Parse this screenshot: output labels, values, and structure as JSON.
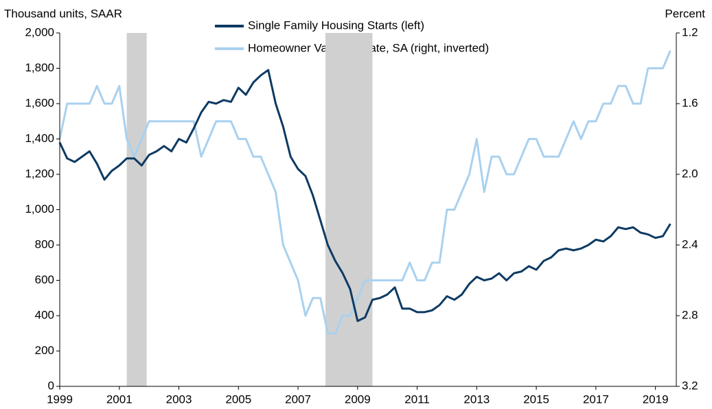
{
  "chart_data": {
    "type": "line",
    "y_label": "Thousand units, SAAR",
    "y2_label": "Percent",
    "x": [
      1999,
      1999.25,
      1999.5,
      1999.75,
      2000,
      2000.25,
      2000.5,
      2000.75,
      2001,
      2001.25,
      2001.5,
      2001.75,
      2002,
      2002.25,
      2002.5,
      2002.75,
      2003,
      2003.25,
      2003.5,
      2003.75,
      2004,
      2004.25,
      2004.5,
      2004.75,
      2005,
      2005.25,
      2005.5,
      2005.75,
      2006,
      2006.25,
      2006.5,
      2006.75,
      2007,
      2007.25,
      2007.5,
      2007.75,
      2008,
      2008.25,
      2008.5,
      2008.75,
      2009,
      2009.25,
      2009.5,
      2009.75,
      2010,
      2010.25,
      2010.5,
      2010.75,
      2011,
      2011.25,
      2011.5,
      2011.75,
      2012,
      2012.25,
      2012.5,
      2012.75,
      2013,
      2013.25,
      2013.5,
      2013.75,
      2014,
      2014.25,
      2014.5,
      2014.75,
      2015,
      2015.25,
      2015.5,
      2015.75,
      2016,
      2016.25,
      2016.5,
      2016.75,
      2017,
      2017.25,
      2017.5,
      2017.75,
      2018,
      2018.25,
      2018.5,
      2018.75,
      2019,
      2019.25,
      2019.5
    ],
    "series": [
      {
        "name": "Single Family Housing Starts (left)",
        "color": "#0d3a63",
        "axis": "y",
        "values": [
          1380,
          1290,
          1270,
          1300,
          1330,
          1260,
          1170,
          1220,
          1250,
          1290,
          1290,
          1250,
          1310,
          1330,
          1360,
          1330,
          1400,
          1380,
          1460,
          1550,
          1610,
          1600,
          1620,
          1610,
          1690,
          1650,
          1720,
          1760,
          1790,
          1600,
          1470,
          1300,
          1230,
          1190,
          1080,
          940,
          800,
          710,
          640,
          550,
          370,
          390,
          490,
          500,
          520,
          560,
          440,
          440,
          420,
          420,
          430,
          460,
          510,
          490,
          520,
          580,
          620,
          600,
          610,
          640,
          600,
          640,
          650,
          680,
          660,
          710,
          730,
          770,
          780,
          770,
          780,
          800,
          830,
          820,
          850,
          900,
          890,
          900,
          870,
          860,
          840,
          850,
          920
        ]
      },
      {
        "name": "Homeowner Vacancy Rate, SA (right, inverted)",
        "color": "#a9d1ef",
        "axis": "y2",
        "values": [
          1.8,
          1.6,
          1.6,
          1.6,
          1.6,
          1.5,
          1.6,
          1.6,
          1.5,
          1.8,
          1.9,
          1.8,
          1.7,
          1.7,
          1.7,
          1.7,
          1.7,
          1.7,
          1.7,
          1.9,
          1.8,
          1.7,
          1.7,
          1.7,
          1.8,
          1.8,
          1.9,
          1.9,
          2.0,
          2.1,
          2.4,
          2.5,
          2.6,
          2.8,
          2.7,
          2.7,
          2.9,
          2.9,
          2.8,
          2.8,
          2.7,
          2.6,
          2.6,
          2.6,
          2.6,
          2.6,
          2.6,
          2.5,
          2.6,
          2.6,
          2.5,
          2.5,
          2.2,
          2.2,
          2.1,
          2.0,
          1.8,
          2.1,
          1.9,
          1.9,
          2.0,
          2.0,
          1.9,
          1.8,
          1.8,
          1.9,
          1.9,
          1.9,
          1.8,
          1.7,
          1.8,
          1.7,
          1.7,
          1.6,
          1.6,
          1.5,
          1.5,
          1.6,
          1.6,
          1.4,
          1.4,
          1.4,
          1.3
        ]
      }
    ],
    "recessions": [
      [
        2001.25,
        2001.92
      ],
      [
        2007.92,
        2009.5
      ]
    ],
    "recession_color": "#d0d0d0",
    "xlim": [
      1999,
      2019.7
    ],
    "xticks": [
      1999,
      2001,
      2003,
      2005,
      2007,
      2009,
      2011,
      2013,
      2015,
      2017,
      2019
    ],
    "ylim": [
      0,
      2000
    ],
    "yticks": [
      0,
      200,
      400,
      600,
      800,
      {
        "value": 1000,
        "label": "1,000"
      },
      {
        "value": 1200,
        "label": "1,200"
      },
      {
        "value": 1400,
        "label": "1,400"
      },
      {
        "value": 1600,
        "label": "1,600"
      },
      {
        "value": 1800,
        "label": "1,800"
      },
      {
        "value": 2000,
        "label": "2,000"
      }
    ],
    "y2lim": [
      3.2,
      1.2
    ],
    "y2ticks": [
      1.2,
      1.6,
      {
        "value": 2,
        "label": "2.0"
      },
      2.4,
      2.8,
      3.2
    ],
    "grid": false
  }
}
